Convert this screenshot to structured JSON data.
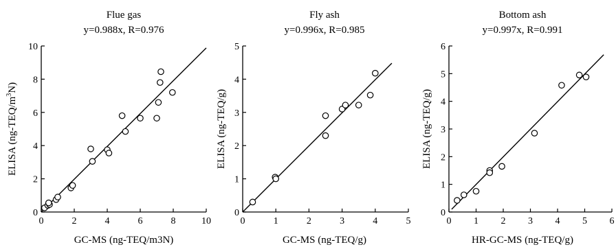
{
  "chart_data": [
    {
      "type": "scatter",
      "title": "Flue gas",
      "subtitle": "y=0.988x, R=0.976",
      "xlabel": "GC-MS (ng-TEQ/m3N)",
      "ylabel_parts": [
        "ELISA (ng-TEQ/m",
        "3",
        "N)"
      ],
      "xlim": [
        0,
        10
      ],
      "ylim": [
        0,
        10
      ],
      "xticks": [
        0,
        2,
        4,
        6,
        8,
        10
      ],
      "yticks": [
        0,
        2,
        4,
        6,
        8,
        10
      ],
      "fit": {
        "slope": 0.988,
        "x_range": [
          0,
          10
        ]
      },
      "x": [
        0.2,
        0.4,
        0.5,
        0.45,
        0.9,
        1.0,
        1.8,
        1.9,
        3.0,
        3.1,
        4.0,
        4.1,
        4.9,
        5.1,
        6.0,
        7.0,
        7.1,
        7.2,
        7.25,
        7.95
      ],
      "y": [
        0.25,
        0.4,
        0.45,
        0.55,
        0.75,
        0.9,
        1.45,
        1.6,
        3.8,
        3.05,
        3.75,
        3.55,
        5.8,
        4.85,
        5.65,
        5.65,
        6.6,
        7.8,
        8.45,
        7.2
      ]
    },
    {
      "type": "scatter",
      "title": "Fly ash",
      "subtitle": "y=0.996x, R=0.985",
      "xlabel": "GC-MS (ng-TEQ/g)",
      "ylabel_parts": [
        "ELISA (ng-TEQ/g)",
        "",
        ""
      ],
      "xlim": [
        0,
        5
      ],
      "ylim": [
        0,
        5
      ],
      "xticks": [
        0,
        1,
        2,
        3,
        4,
        5
      ],
      "yticks": [
        0,
        1,
        2,
        3,
        4,
        5
      ],
      "fit": {
        "slope": 0.996,
        "x_range": [
          0,
          4.5
        ]
      },
      "x": [
        0.3,
        0.98,
        1.0,
        2.5,
        2.5,
        3.0,
        3.1,
        3.5,
        3.85,
        4.0
      ],
      "y": [
        0.3,
        1.05,
        1.0,
        2.3,
        2.9,
        3.1,
        3.22,
        3.22,
        3.52,
        4.18
      ]
    },
    {
      "type": "scatter",
      "title": "Bottom ash",
      "subtitle": "y=0.997x, R=0.991",
      "xlabel": "HR-GC-MS (ng-TEQ/g)",
      "ylabel_parts": [
        "ELISA (ng-TEQ/g)",
        "",
        ""
      ],
      "xlim": [
        0,
        6
      ],
      "ylim": [
        0,
        6
      ],
      "xticks": [
        0,
        1,
        2,
        3,
        4,
        5,
        6
      ],
      "yticks": [
        0,
        1,
        2,
        3,
        4,
        5,
        6
      ],
      "fit": {
        "slope": 0.997,
        "x_range": [
          0.1,
          5.7
        ]
      },
      "x": [
        0.3,
        0.55,
        1.0,
        1.5,
        1.5,
        1.95,
        3.15,
        4.15,
        4.8,
        5.05
      ],
      "y": [
        0.42,
        0.62,
        0.75,
        1.5,
        1.42,
        1.65,
        2.85,
        4.58,
        4.95,
        4.88
      ]
    }
  ]
}
